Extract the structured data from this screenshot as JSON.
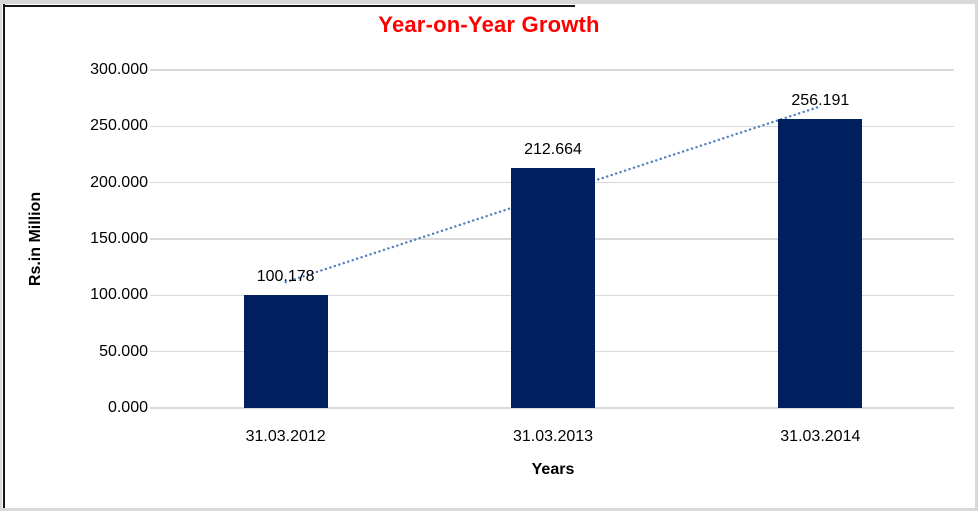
{
  "chart_data": {
    "type": "bar",
    "title": "Year-on-Year Growth",
    "categories": [
      "31.03.2012",
      "31.03.2013",
      "31.03.2014"
    ],
    "values": [
      100.178,
      212.664,
      256.191
    ],
    "value_labels": [
      "100.178",
      "212.664",
      "256.191"
    ],
    "xlabel": "Years",
    "ylabel": "Rs.in Million",
    "ylim": [
      0,
      300
    ],
    "ytick_step": 50,
    "ytick_labels": [
      "0.000",
      "50.000",
      "100.000",
      "150.000",
      "200.000",
      "250.000",
      "300.000"
    ],
    "grid": true,
    "legend": "none",
    "trendline": {
      "type": "linear",
      "style": "dotted"
    },
    "colors": {
      "bar": "#002060",
      "title": "#FF0000",
      "trendline": "#4F81BD",
      "gridline": "#D9D9D9",
      "text": "#000000"
    }
  }
}
